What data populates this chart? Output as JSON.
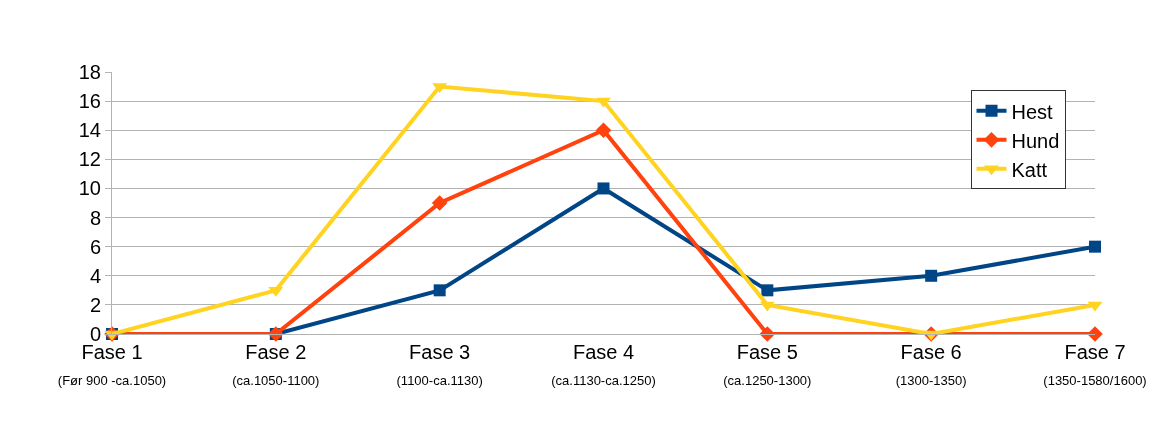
{
  "chart_data": {
    "type": "line",
    "categories": [
      "Fase 1\n(Før 900 -ca.1050)",
      "Fase 2\n(ca.1050-1100)",
      "Fase 3\n(1100-ca.1130)",
      "Fase 4\n(ca.1130-ca.1250)",
      "Fase 5\n(ca.1250-1300)",
      "Fase 6\n(1300-1350)",
      "Fase 7\n(1350-1580/1600)"
    ],
    "series": [
      {
        "name": "Hest",
        "color": "#004586",
        "marker": "square",
        "values": [
          0,
          0,
          3,
          10,
          3,
          4,
          6
        ]
      },
      {
        "name": "Hund",
        "color": "#ff420e",
        "marker": "diamond",
        "values": [
          0,
          0,
          9,
          14,
          0,
          0,
          0
        ]
      },
      {
        "name": "Katt",
        "color": "#ffd320",
        "marker": "triangle",
        "values": [
          0,
          3,
          17,
          16,
          2,
          0,
          2
        ]
      }
    ],
    "ylim": [
      0,
      18
    ],
    "yticks": [
      0,
      2,
      4,
      6,
      8,
      10,
      12,
      14,
      16,
      18
    ],
    "grid": "y",
    "legend": "top right",
    "line_style": "solid"
  }
}
